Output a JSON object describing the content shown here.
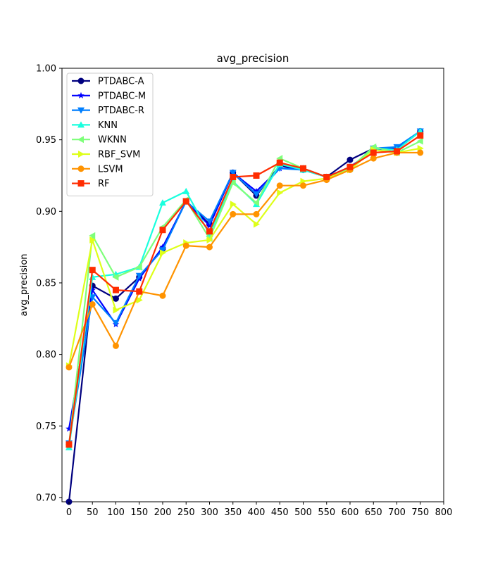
{
  "chart_data": {
    "type": "line",
    "title": "avg_precision",
    "xlabel": "",
    "ylabel": "avg_precision",
    "xlim": [
      -15,
      800
    ],
    "ylim": [
      0.697,
      1.0
    ],
    "xticks": [
      0,
      50,
      100,
      150,
      200,
      250,
      300,
      350,
      400,
      450,
      500,
      550,
      600,
      650,
      700,
      750,
      800
    ],
    "yticks": [
      0.7,
      0.75,
      0.8,
      0.85,
      0.9,
      0.95,
      1.0
    ],
    "ytick_labels": [
      "0.70",
      "0.75",
      "0.80",
      "0.85",
      "0.90",
      "0.95",
      "1.00"
    ],
    "grid": false,
    "legend_position": "top-left",
    "x": [
      0,
      50,
      100,
      150,
      200,
      250,
      300,
      350,
      400,
      450,
      500,
      550,
      600,
      650,
      700,
      750
    ],
    "series": [
      {
        "name": "PTDABC-A",
        "color": "#00007f",
        "marker": "circle",
        "values": [
          0.697,
          0.848,
          0.839,
          0.854,
          0.874,
          0.907,
          0.891,
          0.927,
          0.911,
          0.932,
          0.929,
          0.924,
          0.936,
          0.944,
          0.943,
          0.956
        ]
      },
      {
        "name": "PTDABC-M",
        "color": "#0000ff",
        "marker": "star",
        "values": [
          0.748,
          0.845,
          0.821,
          0.853,
          0.875,
          0.907,
          0.89,
          0.927,
          0.914,
          0.93,
          0.93,
          0.924,
          0.931,
          0.943,
          0.944,
          0.956
        ]
      },
      {
        "name": "PTDABC-R",
        "color": "#007fff",
        "marker": "triangle-down",
        "values": [
          0.738,
          0.84,
          0.822,
          0.855,
          0.873,
          0.907,
          0.893,
          0.927,
          0.912,
          0.93,
          0.929,
          0.924,
          0.93,
          0.944,
          0.945,
          0.956
        ]
      },
      {
        "name": "KNN",
        "color": "#19ffde",
        "marker": "triangle-up",
        "values": [
          0.735,
          0.854,
          0.856,
          0.861,
          0.906,
          0.914,
          0.884,
          0.921,
          0.905,
          0.933,
          0.929,
          0.924,
          0.93,
          0.944,
          0.943,
          0.956
        ]
      },
      {
        "name": "WKNN",
        "color": "#7eff7a",
        "marker": "triangle-left",
        "values": [
          0.737,
          0.883,
          0.854,
          0.861,
          0.889,
          0.908,
          0.881,
          0.92,
          0.906,
          0.937,
          0.93,
          0.924,
          0.93,
          0.945,
          0.941,
          0.949
        ]
      },
      {
        "name": "RBF_SVM",
        "color": "#deff19",
        "marker": "triangle-right",
        "values": [
          0.792,
          0.88,
          0.831,
          0.838,
          0.871,
          0.878,
          0.88,
          0.905,
          0.891,
          0.913,
          0.921,
          0.923,
          0.929,
          0.943,
          0.941,
          0.944
        ]
      },
      {
        "name": "LSVM",
        "color": "#ff9300",
        "marker": "circle",
        "values": [
          0.791,
          0.835,
          0.806,
          0.844,
          0.841,
          0.876,
          0.875,
          0.898,
          0.898,
          0.918,
          0.918,
          0.922,
          0.929,
          0.937,
          0.941,
          0.941
        ]
      },
      {
        "name": "RF",
        "color": "#ff2c00",
        "marker": "square",
        "values": [
          0.737,
          0.859,
          0.845,
          0.844,
          0.887,
          0.907,
          0.886,
          0.924,
          0.925,
          0.934,
          0.93,
          0.924,
          0.931,
          0.941,
          0.942,
          0.953
        ]
      }
    ]
  }
}
